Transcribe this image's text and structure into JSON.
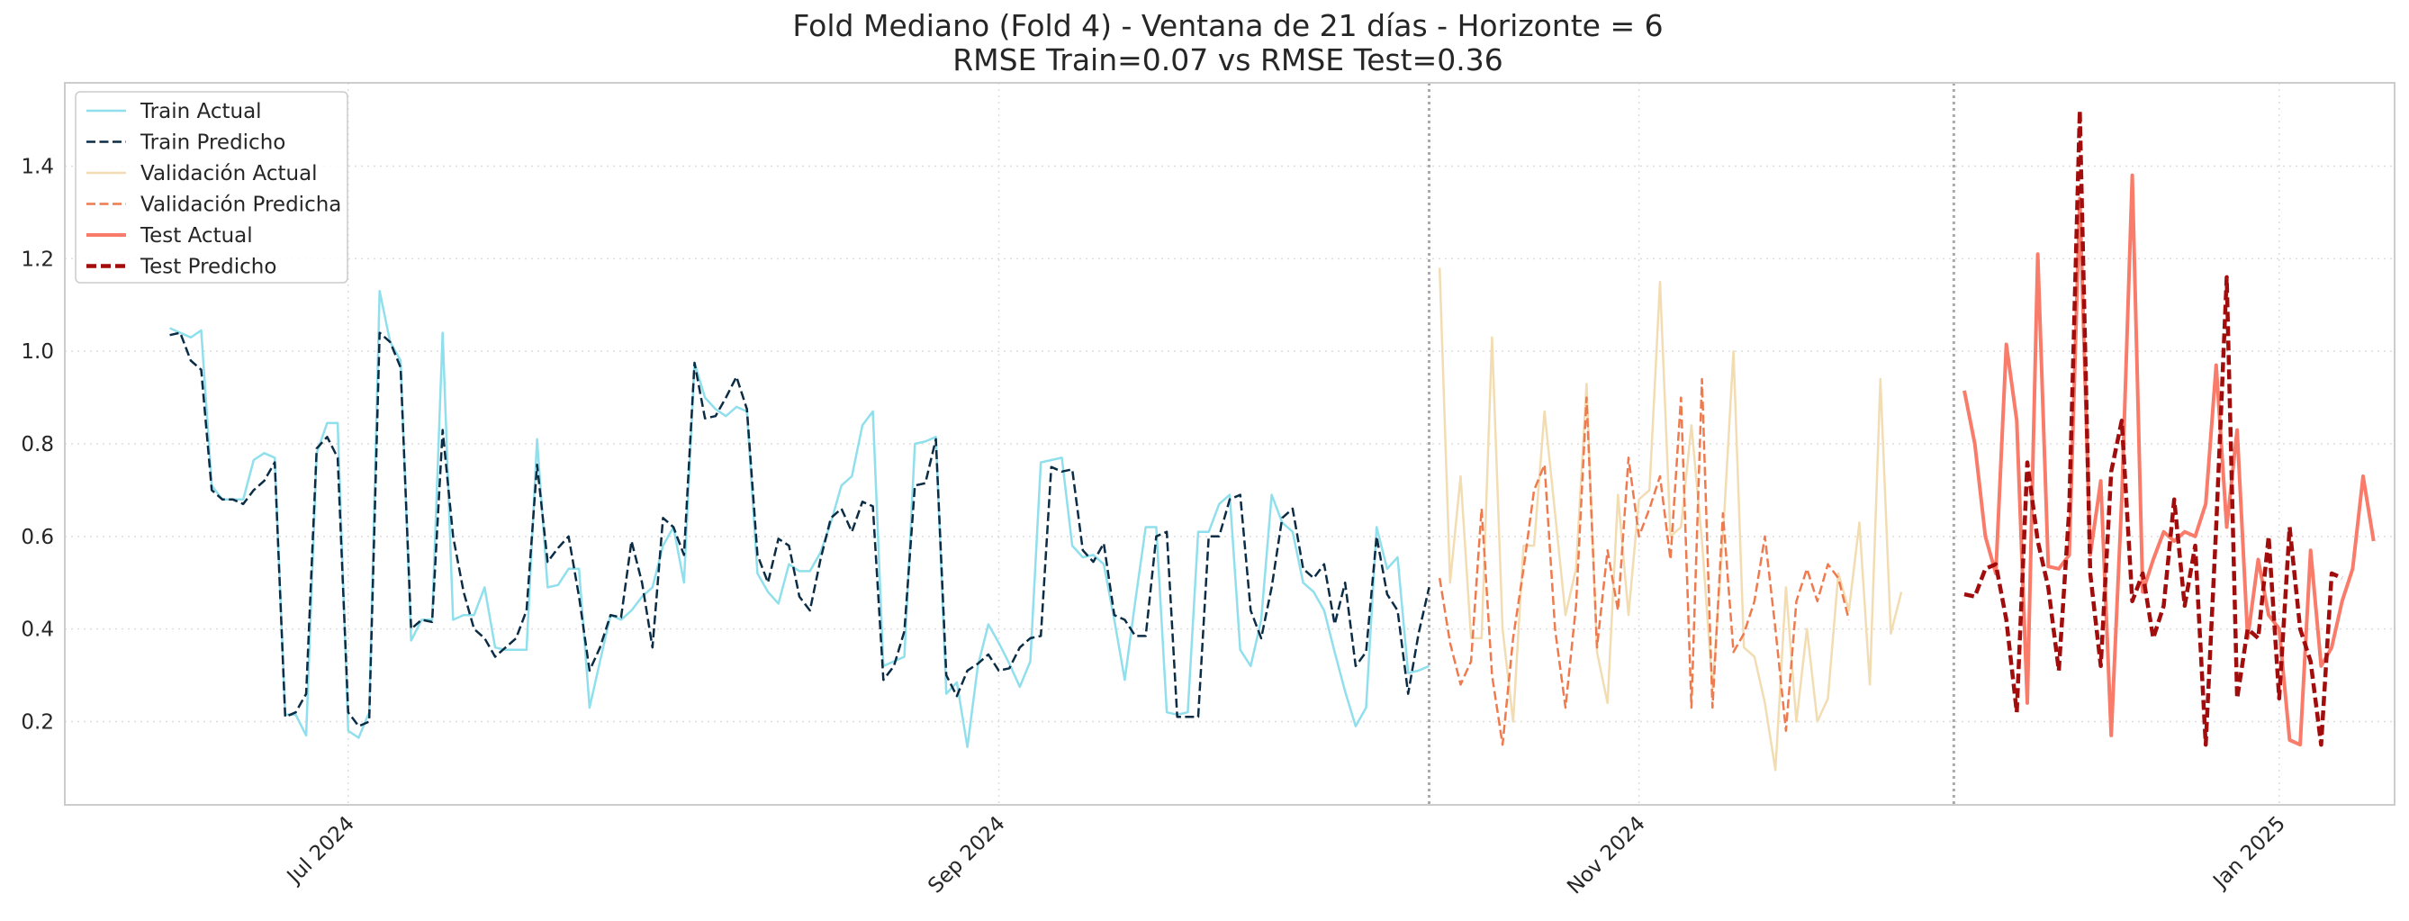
{
  "chart_data": {
    "type": "line",
    "title_line1": "Fold Mediano (Fold 4) - Ventana de 21 días - Horizonte = 6",
    "title_line2": "RMSE Train=0.07 vs RMSE Test=0.36",
    "xlabel": "",
    "ylabel": "",
    "xlim": [
      "2024-06-04",
      "2025-01-12"
    ],
    "ylim": [
      0.02,
      1.58
    ],
    "x_ticks": [
      {
        "date": "2024-07-01",
        "label": "Jul 2024"
      },
      {
        "date": "2024-09-01",
        "label": "Sep 2024"
      },
      {
        "date": "2024-11-01",
        "label": "Nov 2024"
      },
      {
        "date": "2025-01-01",
        "label": "Jan 2025"
      }
    ],
    "y_ticks": [
      {
        "value": 0.2,
        "label": "0.2"
      },
      {
        "value": 0.4,
        "label": "0.4"
      },
      {
        "value": 0.6,
        "label": "0.6"
      },
      {
        "value": 0.8,
        "label": "0.8"
      },
      {
        "value": 1.0,
        "label": "1.0"
      },
      {
        "value": 1.2,
        "label": "1.2"
      },
      {
        "value": 1.4,
        "label": "1.4"
      }
    ],
    "split_lines": [
      "2024-10-12",
      "2024-12-01"
    ],
    "grid": true,
    "legend_position": "top-left",
    "colors": {
      "train_actual": "#8fdfec",
      "train_pred": "#0b2c45",
      "val_actual": "#f2dcb2",
      "val_pred": "#ee7a4e",
      "test_actual": "#f97b6a",
      "test_pred": "#a10c0c",
      "grid": "#dddddd",
      "split": "#aaaaaa",
      "frame": "#cccccc"
    },
    "series": [
      {
        "name": "Train Actual",
        "role": "train_actual",
        "start": "2024-06-14",
        "values": [
          1.05,
          1.04,
          1.03,
          1.045,
          0.71,
          0.68,
          0.68,
          0.68,
          0.765,
          0.78,
          0.77,
          0.215,
          0.215,
          0.17,
          0.78,
          0.845,
          0.845,
          0.18,
          0.165,
          0.22,
          1.13,
          1.02,
          0.98,
          0.375,
          0.42,
          0.42,
          1.04,
          0.42,
          0.43,
          0.43,
          0.49,
          0.36,
          0.355,
          0.355,
          0.355,
          0.81,
          0.49,
          0.495,
          0.53,
          0.53,
          0.23,
          0.33,
          0.43,
          0.42,
          0.44,
          0.47,
          0.49,
          0.58,
          0.62,
          0.5,
          0.975,
          0.9,
          0.875,
          0.86,
          0.88,
          0.87,
          0.52,
          0.48,
          0.455,
          0.54,
          0.525,
          0.525,
          0.565,
          0.63,
          0.71,
          0.73,
          0.84,
          0.87,
          0.32,
          0.33,
          0.34,
          0.8,
          0.805,
          0.815,
          0.26,
          0.285,
          0.145,
          0.32,
          0.41,
          0.37,
          0.325,
          0.275,
          0.33,
          0.76,
          0.765,
          0.77,
          0.58,
          0.555,
          0.56,
          0.54,
          0.42,
          0.29,
          0.46,
          0.62,
          0.62,
          0.22,
          0.215,
          0.22,
          0.61,
          0.61,
          0.67,
          0.69,
          0.355,
          0.32,
          0.42,
          0.69,
          0.63,
          0.61,
          0.5,
          0.48,
          0.44,
          0.35,
          0.265,
          0.19,
          0.23,
          0.62,
          0.53,
          0.555,
          0.305,
          0.31,
          0.32
        ]
      },
      {
        "name": "Train Predicho",
        "role": "train_pred",
        "start": "2024-06-14",
        "values": [
          1.035,
          1.04,
          0.98,
          0.96,
          0.7,
          0.68,
          0.68,
          0.67,
          0.7,
          0.72,
          0.76,
          0.21,
          0.22,
          0.26,
          0.79,
          0.815,
          0.77,
          0.22,
          0.19,
          0.2,
          1.04,
          1.02,
          0.965,
          0.4,
          0.42,
          0.415,
          0.83,
          0.6,
          0.48,
          0.4,
          0.38,
          0.34,
          0.36,
          0.38,
          0.44,
          0.755,
          0.545,
          0.575,
          0.6,
          0.47,
          0.31,
          0.36,
          0.43,
          0.425,
          0.59,
          0.5,
          0.36,
          0.64,
          0.62,
          0.56,
          0.975,
          0.855,
          0.86,
          0.9,
          0.945,
          0.875,
          0.56,
          0.5,
          0.595,
          0.58,
          0.47,
          0.44,
          0.55,
          0.64,
          0.66,
          0.61,
          0.675,
          0.665,
          0.29,
          0.32,
          0.395,
          0.71,
          0.715,
          0.81,
          0.3,
          0.255,
          0.31,
          0.325,
          0.345,
          0.31,
          0.315,
          0.36,
          0.38,
          0.385,
          0.75,
          0.74,
          0.745,
          0.57,
          0.545,
          0.585,
          0.43,
          0.42,
          0.385,
          0.385,
          0.6,
          0.61,
          0.21,
          0.21,
          0.21,
          0.6,
          0.6,
          0.68,
          0.69,
          0.44,
          0.38,
          0.49,
          0.64,
          0.66,
          0.53,
          0.51,
          0.54,
          0.41,
          0.5,
          0.32,
          0.35,
          0.6,
          0.475,
          0.44,
          0.26,
          0.39,
          0.49
        ]
      },
      {
        "name": "Validación Actual",
        "role": "val_actual",
        "start": "2024-10-13",
        "values": [
          1.18,
          0.5,
          0.73,
          0.38,
          0.38,
          1.03,
          0.4,
          0.2,
          0.58,
          0.58,
          0.87,
          0.65,
          0.43,
          0.53,
          0.93,
          0.35,
          0.24,
          0.69,
          0.43,
          0.68,
          0.7,
          1.15,
          0.6,
          0.62,
          0.84,
          0.59,
          0.27,
          0.6,
          1.0,
          0.36,
          0.34,
          0.24,
          0.095,
          0.49,
          0.2,
          0.4,
          0.2,
          0.25,
          0.52,
          0.44,
          0.63,
          0.28,
          0.94,
          0.39,
          0.48
        ]
      },
      {
        "name": "Validación Predicha",
        "role": "val_pred",
        "start": "2024-10-13",
        "values": [
          0.51,
          0.37,
          0.28,
          0.33,
          0.66,
          0.3,
          0.15,
          0.38,
          0.53,
          0.7,
          0.755,
          0.4,
          0.23,
          0.45,
          0.9,
          0.36,
          0.57,
          0.44,
          0.77,
          0.6,
          0.66,
          0.73,
          0.55,
          0.9,
          0.23,
          0.94,
          0.23,
          0.65,
          0.35,
          0.39,
          0.46,
          0.6,
          0.4,
          0.18,
          0.46,
          0.53,
          0.46,
          0.54,
          0.51,
          0.42
        ]
      },
      {
        "name": "Test Actual",
        "role": "test_actual",
        "start": "2024-12-02",
        "values": [
          0.915,
          0.8,
          0.6,
          0.52,
          1.015,
          0.85,
          0.24,
          1.21,
          0.535,
          0.53,
          0.56,
          1.33,
          0.56,
          0.72,
          0.17,
          0.68,
          1.38,
          0.48,
          0.55,
          0.61,
          0.59,
          0.61,
          0.6,
          0.67,
          0.97,
          0.62,
          0.83,
          0.38,
          0.55,
          0.43,
          0.4,
          0.16,
          0.15,
          0.57,
          0.32,
          0.36,
          0.46,
          0.53,
          0.73,
          0.59
        ]
      },
      {
        "name": "Test Predicho",
        "role": "test_pred",
        "start": "2024-12-02",
        "values": [
          0.475,
          0.47,
          0.53,
          0.54,
          0.42,
          0.22,
          0.76,
          0.59,
          0.49,
          0.31,
          0.66,
          1.52,
          0.52,
          0.32,
          0.74,
          0.85,
          0.46,
          0.52,
          0.38,
          0.45,
          0.68,
          0.45,
          0.58,
          0.15,
          0.62,
          1.16,
          0.25,
          0.4,
          0.38,
          0.6,
          0.25,
          0.62,
          0.4,
          0.33,
          0.15,
          0.52,
          0.51
        ]
      }
    ]
  }
}
